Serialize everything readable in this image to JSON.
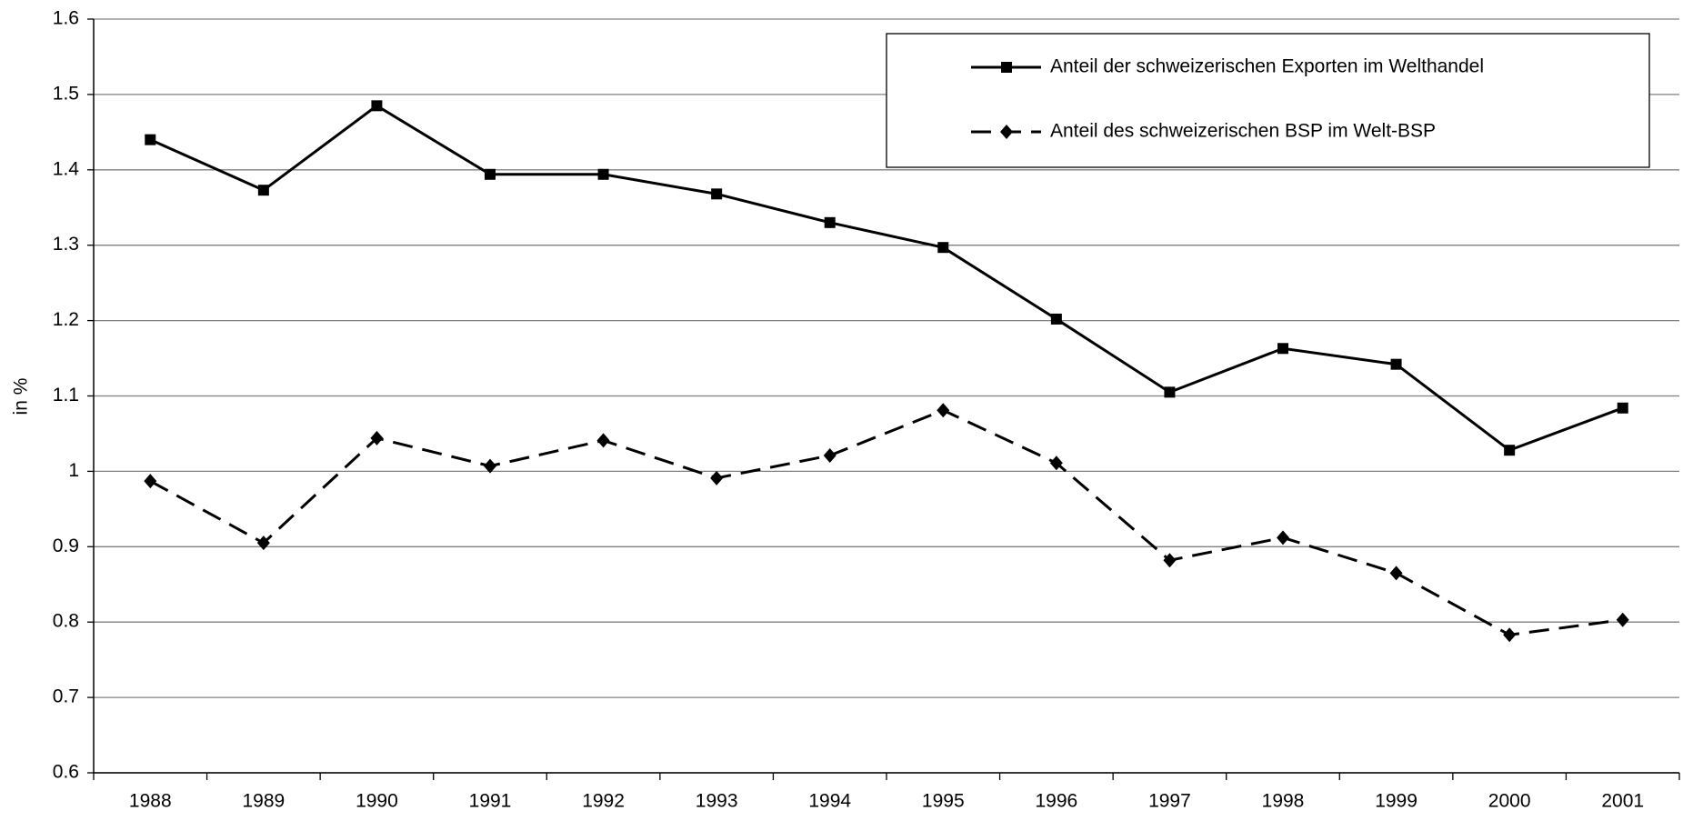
{
  "chart_data": {
    "type": "line",
    "y_axis_label": "in %",
    "categories": [
      "1988",
      "1989",
      "1990",
      "1991",
      "1992",
      "1993",
      "1994",
      "1995",
      "1996",
      "1997",
      "1998",
      "1999",
      "2000",
      "2001"
    ],
    "series": [
      {
        "name": "Anteil der schweizerischen Exporten im Welthandel",
        "color": "#000000",
        "marker": "square",
        "dash": "solid",
        "values": [
          1.44,
          1.373,
          1.485,
          1.394,
          1.394,
          1.368,
          1.33,
          1.297,
          1.202,
          1.105,
          1.163,
          1.142,
          1.028,
          1.084
        ]
      },
      {
        "name": "Anteil des schweizerischen BSP im Welt-BSP",
        "color": "#000000",
        "marker": "diamond",
        "dash": "dashed",
        "values": [
          0.987,
          0.905,
          1.044,
          1.007,
          1.041,
          0.991,
          1.021,
          1.081,
          1.011,
          0.882,
          0.912,
          0.865,
          0.783,
          0.803
        ]
      }
    ],
    "ylim": [
      0.6,
      1.6
    ],
    "yticks": [
      0.6,
      0.7,
      0.8,
      0.9,
      1,
      1.1,
      1.2,
      1.3,
      1.4,
      1.5,
      1.6
    ],
    "grid": true,
    "legend": "top-right"
  }
}
